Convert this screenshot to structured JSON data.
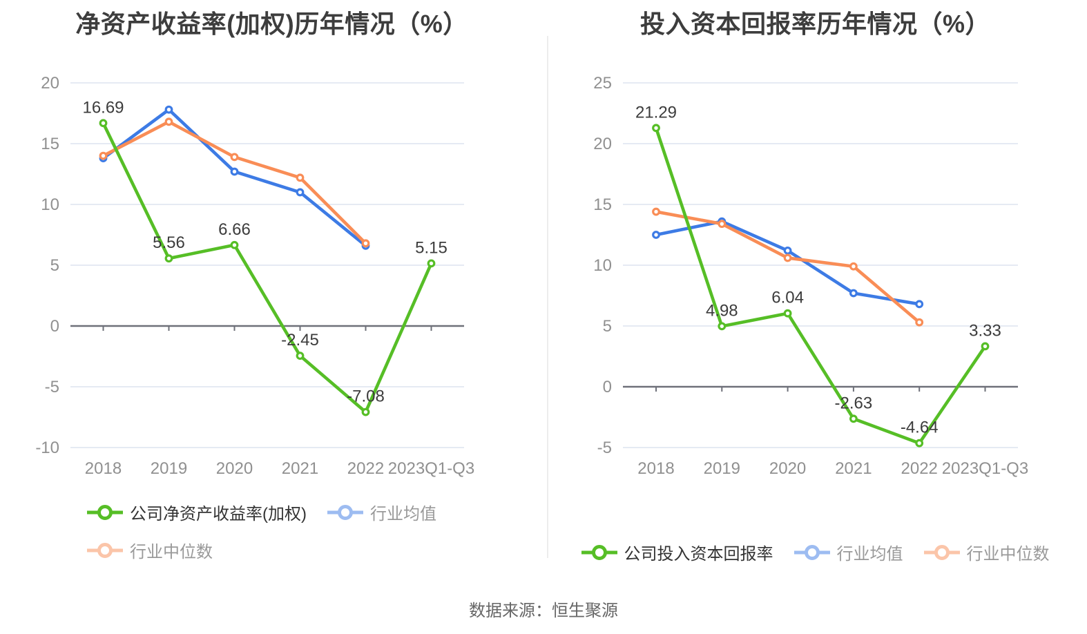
{
  "colors": {
    "company_green": "#56be26",
    "industry_mean_blue": "#3d7be5",
    "industry_median_orange": "#f98d56",
    "grid_line": "#e5eaf3",
    "axis_line": "#6e7079",
    "axis_label": "#909090",
    "data_label": "#3c3c3c",
    "title": "#3d3d3d",
    "legend_active_text": "#333333",
    "legend_muted_text": "#999999",
    "divider": "#ededed",
    "source_text": "#666666"
  },
  "footer": {
    "source_note": "数据来源：恒生聚源"
  },
  "chart_data": [
    {
      "type": "line",
      "title": "净资产收益率(加权)历年情况（%）",
      "xlabel": "",
      "ylabel": "",
      "grid": true,
      "legend_position": "bottom",
      "categories": [
        "2018",
        "2019",
        "2020",
        "2021",
        "2022",
        "2023Q1-Q3"
      ],
      "y_ticks": [
        20,
        15,
        10,
        5,
        0,
        -5,
        -10
      ],
      "ylim": [
        -10,
        20
      ],
      "series": [
        {
          "id": "company-roe-weighted",
          "name": "公司净资产收益率(加权)",
          "color": "#56be26",
          "labeled": true,
          "muted": false,
          "values": [
            16.69,
            5.56,
            6.66,
            -2.45,
            -7.08,
            5.15
          ],
          "labels": [
            "16.69",
            "5.56",
            "6.66",
            "-2.45",
            "-7.08",
            "5.15"
          ]
        },
        {
          "id": "industry-mean",
          "name": "行业均值",
          "color": "#3d7be5",
          "labeled": false,
          "muted": true,
          "values": [
            13.8,
            17.8,
            12.7,
            11.0,
            6.6
          ]
        },
        {
          "id": "industry-median",
          "name": "行业中位数",
          "color": "#f98d56",
          "labeled": false,
          "muted": true,
          "values": [
            14.0,
            16.8,
            13.9,
            12.2,
            6.8
          ]
        }
      ],
      "legend_rows": [
        [
          0,
          1
        ],
        [
          2
        ]
      ]
    },
    {
      "type": "line",
      "title": "投入资本回报率历年情况（%）",
      "xlabel": "",
      "ylabel": "",
      "grid": true,
      "legend_position": "bottom",
      "categories": [
        "2018",
        "2019",
        "2020",
        "2021",
        "2022",
        "2023Q1-Q3"
      ],
      "y_ticks": [
        25,
        20,
        15,
        10,
        5,
        0,
        -5
      ],
      "ylim": [
        -5,
        25
      ],
      "series": [
        {
          "id": "company-roic",
          "name": "公司投入资本回报率",
          "color": "#56be26",
          "labeled": true,
          "muted": false,
          "values": [
            21.29,
            4.98,
            6.04,
            -2.63,
            -4.64,
            3.33
          ],
          "labels": [
            "21.29",
            "4.98",
            "6.04",
            "-2.63",
            "-4.64",
            "3.33"
          ]
        },
        {
          "id": "industry-mean",
          "name": "行业均值",
          "color": "#3d7be5",
          "labeled": false,
          "muted": true,
          "values": [
            12.5,
            13.6,
            11.2,
            7.7,
            6.8
          ]
        },
        {
          "id": "industry-median",
          "name": "行业中位数",
          "color": "#f98d56",
          "labeled": false,
          "muted": true,
          "values": [
            14.4,
            13.4,
            10.6,
            9.9,
            5.3
          ]
        }
      ],
      "legend_rows": [
        [
          0,
          1,
          2
        ]
      ]
    }
  ]
}
